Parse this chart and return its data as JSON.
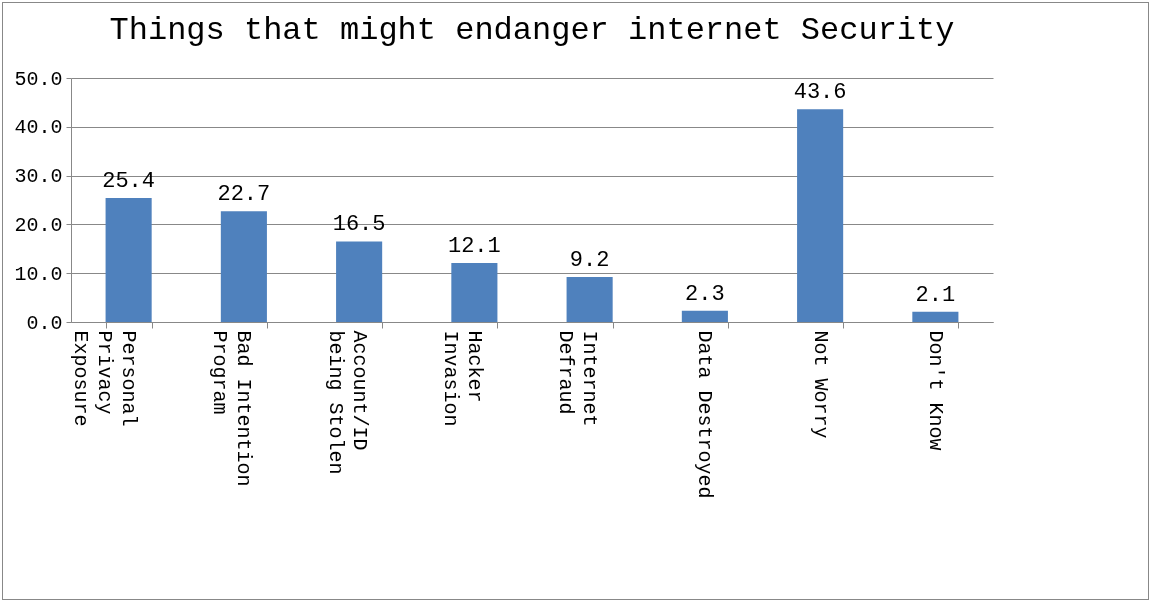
{
  "chart_data": {
    "type": "bar",
    "title": "Things that might endanger internet Security",
    "categories": [
      "Personal Privacy Exposure",
      "Bad Intention Program",
      "Account/ID being Stolen",
      "Hacker Invasion",
      "Internet Defraud",
      "Data Destroyed",
      "Not Worry",
      "Don't Know"
    ],
    "values": [
      25.4,
      22.7,
      16.5,
      12.1,
      9.2,
      2.3,
      43.6,
      2.1
    ],
    "color": "#4f81bd",
    "ylim": [
      0,
      50
    ],
    "yticks": [
      {
        "value": 0,
        "label": "0.0"
      },
      {
        "value": 10,
        "label": "10.0"
      },
      {
        "value": 20,
        "label": "20.0"
      },
      {
        "value": 30,
        "label": "30.0"
      },
      {
        "value": 40,
        "label": "40.0"
      },
      {
        "value": 50,
        "label": "50.0"
      }
    ],
    "grid": "y",
    "data_labels": true
  }
}
